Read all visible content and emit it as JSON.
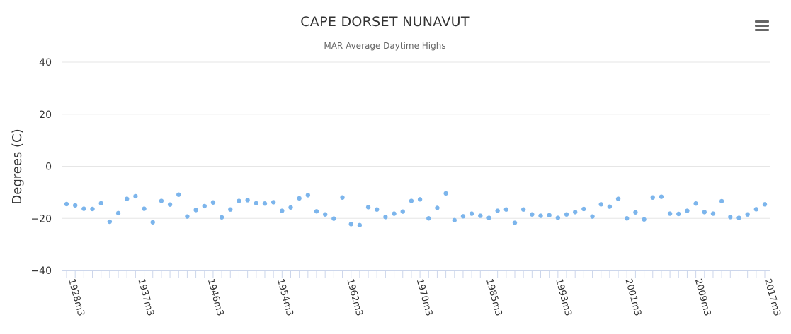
{
  "chart_data": {
    "type": "scatter",
    "title": "CAPE DORSET NUNAVUT",
    "subtitle": "MAR Average Daytime Highs",
    "xlabel": "",
    "ylabel": "Degrees (C)",
    "ylim": [
      -40,
      40
    ],
    "yticks": [
      40,
      20,
      0,
      -20,
      -40
    ],
    "grid": true,
    "legend": "none",
    "point_color": "#7cb5ec",
    "x_tick_labels": [
      "1928m3",
      "1937m3",
      "1946m3",
      "1954m3",
      "1962m3",
      "1970m3",
      "1985m3",
      "1993m3",
      "2001m3",
      "2009m3",
      "2017m3"
    ],
    "series": [
      {
        "values": [
          -14.5,
          -15,
          -16.3,
          -16.4,
          -14.2,
          -21.3,
          -18,
          -12.5,
          -11.5,
          -16.3,
          -21.5,
          -13.3,
          -14.7,
          -10.9,
          -19.3,
          -16.8,
          -15.3,
          -13.9,
          -19.6,
          -16.6,
          -13.3,
          -13,
          -14.2,
          -14.3,
          -13.8,
          -17.1,
          -15.8,
          -12.3,
          -11.1,
          -17.3,
          -18.5,
          -20.1,
          -12,
          -22.2,
          -22.6,
          -15.7,
          -16.6,
          -19.5,
          -18.2,
          -17.4,
          -13.3,
          -12.7,
          -20,
          -16,
          -10.4,
          -20.7,
          -19.2,
          -18.2,
          -19,
          -19.8,
          -17.1,
          -16.6,
          -21.7,
          -16.6,
          -18.5,
          -19,
          -18.8,
          -19.8,
          -18.5,
          -17.6,
          -16.4,
          -19.3,
          -14.6,
          -15.5,
          -12.5,
          -20,
          -17.7,
          -20.4,
          -12,
          -11.7,
          -18.2,
          -18.3,
          -17.1,
          -14.3,
          -17.6,
          -18.2,
          -13.4,
          -19.5,
          -19.8,
          -18.5,
          -16.5,
          -14.6
        ]
      }
    ]
  },
  "toolbar": {
    "menu_icon": "hamburger-menu-icon"
  }
}
